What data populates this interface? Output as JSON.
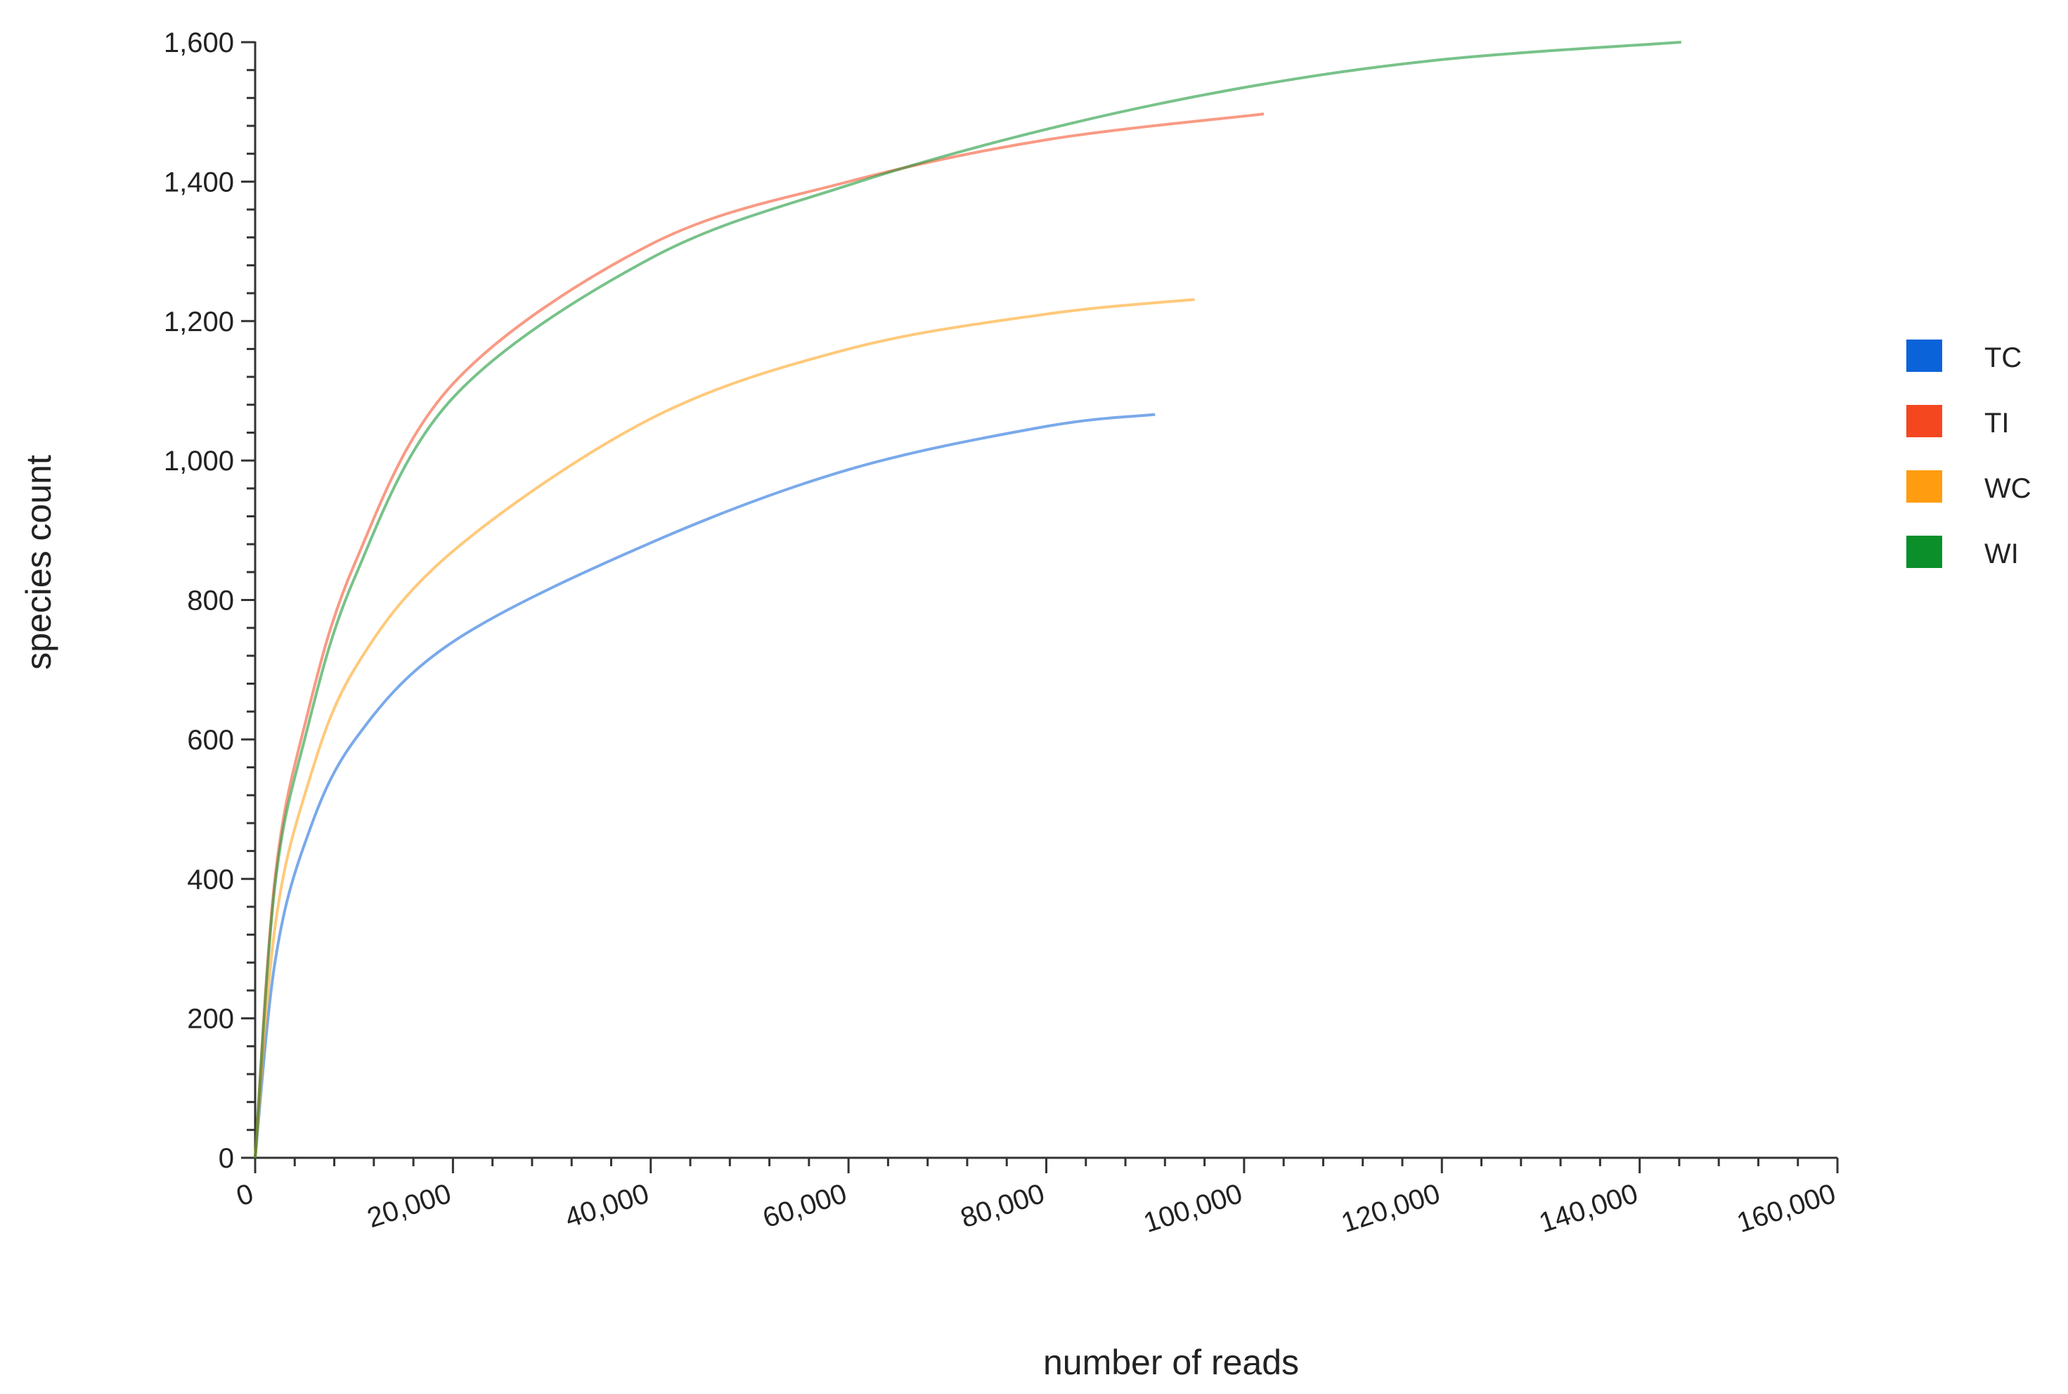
{
  "chart_data": {
    "type": "line",
    "x_label": "number of reads",
    "y_label": "species count",
    "xlim": [
      0,
      160000
    ],
    "ylim": [
      0,
      1600
    ],
    "xticks": [
      0,
      {
        "value": 20000,
        "label": "20,000"
      },
      {
        "value": 40000,
        "label": "40,000"
      },
      {
        "value": 60000,
        "label": "60,000"
      },
      {
        "value": 80000,
        "label": "80,000"
      },
      {
        "value": 100000,
        "label": "100,000"
      },
      {
        "value": 120000,
        "label": "120,000"
      },
      {
        "value": 140000,
        "label": "140,000"
      },
      {
        "value": 160000,
        "label": "160,000"
      }
    ],
    "yticks": [
      0,
      200,
      400,
      600,
      800,
      {
        "value": 1000,
        "label": "1,000"
      },
      {
        "value": 1200,
        "label": "1,200"
      },
      {
        "value": 1400,
        "label": "1,400"
      },
      {
        "value": 1600,
        "label": "1,600"
      }
    ],
    "legend": "right",
    "series": [
      {
        "name": "TC",
        "color": "#0b63d9",
        "x": [
          0,
          2000,
          5000,
          10000,
          20000,
          40000,
          60000,
          80000,
          91000
        ],
        "values": [
          0,
          280,
          450,
          598,
          740,
          882,
          987,
          1049,
          1066
        ]
      },
      {
        "name": "TI",
        "color": "#f4471f",
        "x": [
          0,
          2000,
          5000,
          10000,
          20000,
          40000,
          60000,
          80000,
          102000
        ],
        "values": [
          0,
          400,
          620,
          850,
          1110,
          1310,
          1400,
          1460,
          1497
        ]
      },
      {
        "name": "WC",
        "color": "#ff9c0f",
        "x": [
          0,
          2000,
          5000,
          10000,
          20000,
          40000,
          60000,
          80000,
          95000
        ],
        "values": [
          0,
          330,
          520,
          700,
          870,
          1060,
          1160,
          1210,
          1231
        ]
      },
      {
        "name": "WI",
        "color": "#0a8f2a",
        "x": [
          0,
          2000,
          5000,
          10000,
          20000,
          40000,
          60000,
          80000,
          100000,
          120000,
          144200
        ],
        "values": [
          0,
          390,
          600,
          830,
          1090,
          1290,
          1395,
          1475,
          1535,
          1575,
          1600
        ]
      }
    ]
  }
}
